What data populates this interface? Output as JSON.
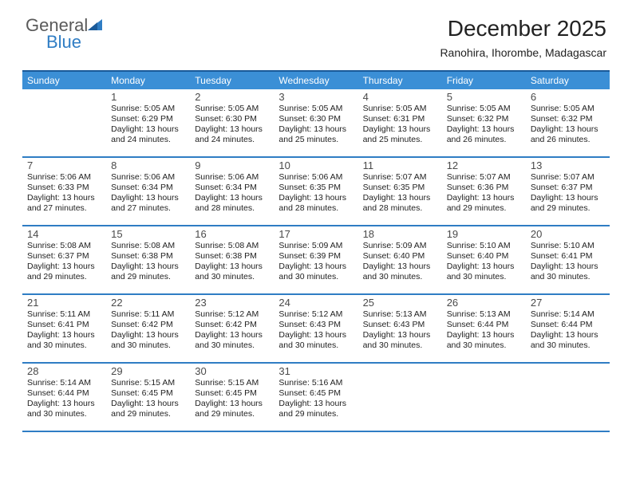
{
  "brand": {
    "general": "General",
    "blue": "Blue"
  },
  "title": "December 2025",
  "location": "Ranohira, Ihorombe, Madagascar",
  "colors": {
    "header_bg": "#3b8fd6",
    "border": "#2f7dc4",
    "top_border": "#1a5a99",
    "logo_gray": "#5a5a5a",
    "logo_blue": "#2f7dc4",
    "text": "#222222",
    "white": "#ffffff"
  },
  "dow": [
    "Sunday",
    "Monday",
    "Tuesday",
    "Wednesday",
    "Thursday",
    "Friday",
    "Saturday"
  ],
  "weeks": [
    [
      {
        "day": "",
        "sunrise": "",
        "sunset": "",
        "daylight1": "",
        "daylight2": ""
      },
      {
        "day": "1",
        "sunrise": "Sunrise: 5:05 AM",
        "sunset": "Sunset: 6:29 PM",
        "daylight1": "Daylight: 13 hours",
        "daylight2": "and 24 minutes."
      },
      {
        "day": "2",
        "sunrise": "Sunrise: 5:05 AM",
        "sunset": "Sunset: 6:30 PM",
        "daylight1": "Daylight: 13 hours",
        "daylight2": "and 24 minutes."
      },
      {
        "day": "3",
        "sunrise": "Sunrise: 5:05 AM",
        "sunset": "Sunset: 6:30 PM",
        "daylight1": "Daylight: 13 hours",
        "daylight2": "and 25 minutes."
      },
      {
        "day": "4",
        "sunrise": "Sunrise: 5:05 AM",
        "sunset": "Sunset: 6:31 PM",
        "daylight1": "Daylight: 13 hours",
        "daylight2": "and 25 minutes."
      },
      {
        "day": "5",
        "sunrise": "Sunrise: 5:05 AM",
        "sunset": "Sunset: 6:32 PM",
        "daylight1": "Daylight: 13 hours",
        "daylight2": "and 26 minutes."
      },
      {
        "day": "6",
        "sunrise": "Sunrise: 5:05 AM",
        "sunset": "Sunset: 6:32 PM",
        "daylight1": "Daylight: 13 hours",
        "daylight2": "and 26 minutes."
      }
    ],
    [
      {
        "day": "7",
        "sunrise": "Sunrise: 5:06 AM",
        "sunset": "Sunset: 6:33 PM",
        "daylight1": "Daylight: 13 hours",
        "daylight2": "and 27 minutes."
      },
      {
        "day": "8",
        "sunrise": "Sunrise: 5:06 AM",
        "sunset": "Sunset: 6:34 PM",
        "daylight1": "Daylight: 13 hours",
        "daylight2": "and 27 minutes."
      },
      {
        "day": "9",
        "sunrise": "Sunrise: 5:06 AM",
        "sunset": "Sunset: 6:34 PM",
        "daylight1": "Daylight: 13 hours",
        "daylight2": "and 28 minutes."
      },
      {
        "day": "10",
        "sunrise": "Sunrise: 5:06 AM",
        "sunset": "Sunset: 6:35 PM",
        "daylight1": "Daylight: 13 hours",
        "daylight2": "and 28 minutes."
      },
      {
        "day": "11",
        "sunrise": "Sunrise: 5:07 AM",
        "sunset": "Sunset: 6:35 PM",
        "daylight1": "Daylight: 13 hours",
        "daylight2": "and 28 minutes."
      },
      {
        "day": "12",
        "sunrise": "Sunrise: 5:07 AM",
        "sunset": "Sunset: 6:36 PM",
        "daylight1": "Daylight: 13 hours",
        "daylight2": "and 29 minutes."
      },
      {
        "day": "13",
        "sunrise": "Sunrise: 5:07 AM",
        "sunset": "Sunset: 6:37 PM",
        "daylight1": "Daylight: 13 hours",
        "daylight2": "and 29 minutes."
      }
    ],
    [
      {
        "day": "14",
        "sunrise": "Sunrise: 5:08 AM",
        "sunset": "Sunset: 6:37 PM",
        "daylight1": "Daylight: 13 hours",
        "daylight2": "and 29 minutes."
      },
      {
        "day": "15",
        "sunrise": "Sunrise: 5:08 AM",
        "sunset": "Sunset: 6:38 PM",
        "daylight1": "Daylight: 13 hours",
        "daylight2": "and 29 minutes."
      },
      {
        "day": "16",
        "sunrise": "Sunrise: 5:08 AM",
        "sunset": "Sunset: 6:38 PM",
        "daylight1": "Daylight: 13 hours",
        "daylight2": "and 30 minutes."
      },
      {
        "day": "17",
        "sunrise": "Sunrise: 5:09 AM",
        "sunset": "Sunset: 6:39 PM",
        "daylight1": "Daylight: 13 hours",
        "daylight2": "and 30 minutes."
      },
      {
        "day": "18",
        "sunrise": "Sunrise: 5:09 AM",
        "sunset": "Sunset: 6:40 PM",
        "daylight1": "Daylight: 13 hours",
        "daylight2": "and 30 minutes."
      },
      {
        "day": "19",
        "sunrise": "Sunrise: 5:10 AM",
        "sunset": "Sunset: 6:40 PM",
        "daylight1": "Daylight: 13 hours",
        "daylight2": "and 30 minutes."
      },
      {
        "day": "20",
        "sunrise": "Sunrise: 5:10 AM",
        "sunset": "Sunset: 6:41 PM",
        "daylight1": "Daylight: 13 hours",
        "daylight2": "and 30 minutes."
      }
    ],
    [
      {
        "day": "21",
        "sunrise": "Sunrise: 5:11 AM",
        "sunset": "Sunset: 6:41 PM",
        "daylight1": "Daylight: 13 hours",
        "daylight2": "and 30 minutes."
      },
      {
        "day": "22",
        "sunrise": "Sunrise: 5:11 AM",
        "sunset": "Sunset: 6:42 PM",
        "daylight1": "Daylight: 13 hours",
        "daylight2": "and 30 minutes."
      },
      {
        "day": "23",
        "sunrise": "Sunrise: 5:12 AM",
        "sunset": "Sunset: 6:42 PM",
        "daylight1": "Daylight: 13 hours",
        "daylight2": "and 30 minutes."
      },
      {
        "day": "24",
        "sunrise": "Sunrise: 5:12 AM",
        "sunset": "Sunset: 6:43 PM",
        "daylight1": "Daylight: 13 hours",
        "daylight2": "and 30 minutes."
      },
      {
        "day": "25",
        "sunrise": "Sunrise: 5:13 AM",
        "sunset": "Sunset: 6:43 PM",
        "daylight1": "Daylight: 13 hours",
        "daylight2": "and 30 minutes."
      },
      {
        "day": "26",
        "sunrise": "Sunrise: 5:13 AM",
        "sunset": "Sunset: 6:44 PM",
        "daylight1": "Daylight: 13 hours",
        "daylight2": "and 30 minutes."
      },
      {
        "day": "27",
        "sunrise": "Sunrise: 5:14 AM",
        "sunset": "Sunset: 6:44 PM",
        "daylight1": "Daylight: 13 hours",
        "daylight2": "and 30 minutes."
      }
    ],
    [
      {
        "day": "28",
        "sunrise": "Sunrise: 5:14 AM",
        "sunset": "Sunset: 6:44 PM",
        "daylight1": "Daylight: 13 hours",
        "daylight2": "and 30 minutes."
      },
      {
        "day": "29",
        "sunrise": "Sunrise: 5:15 AM",
        "sunset": "Sunset: 6:45 PM",
        "daylight1": "Daylight: 13 hours",
        "daylight2": "and 29 minutes."
      },
      {
        "day": "30",
        "sunrise": "Sunrise: 5:15 AM",
        "sunset": "Sunset: 6:45 PM",
        "daylight1": "Daylight: 13 hours",
        "daylight2": "and 29 minutes."
      },
      {
        "day": "31",
        "sunrise": "Sunrise: 5:16 AM",
        "sunset": "Sunset: 6:45 PM",
        "daylight1": "Daylight: 13 hours",
        "daylight2": "and 29 minutes."
      },
      {
        "day": "",
        "sunrise": "",
        "sunset": "",
        "daylight1": "",
        "daylight2": ""
      },
      {
        "day": "",
        "sunrise": "",
        "sunset": "",
        "daylight1": "",
        "daylight2": ""
      },
      {
        "day": "",
        "sunrise": "",
        "sunset": "",
        "daylight1": "",
        "daylight2": ""
      }
    ]
  ]
}
